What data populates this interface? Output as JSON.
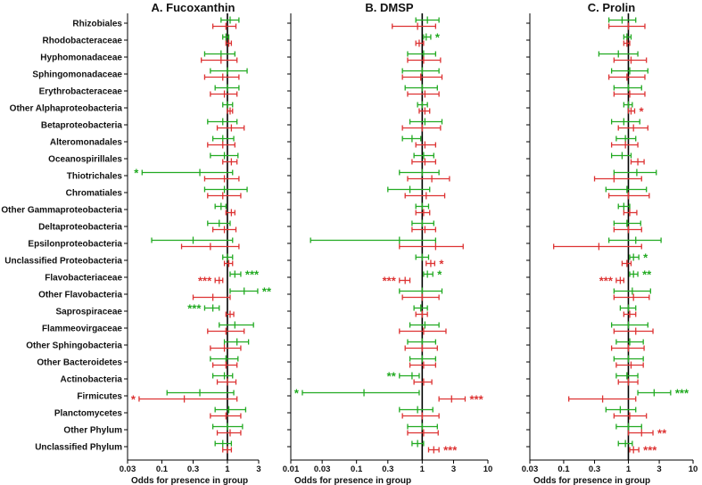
{
  "colors": {
    "group1": "#22aa22",
    "group2": "#dd3333",
    "axis": "#000000"
  },
  "chart_data": [
    {
      "type": "forest",
      "title": "A. Fucoxanthin",
      "xlabel": "Odds for presence in group",
      "xscale": "log",
      "xlim": [
        0.03,
        3
      ],
      "xticks": [
        "0.03",
        "0.1",
        "0.3",
        "1",
        "3"
      ],
      "categories": [
        "Rhizobiales",
        "Rhodobacteraceae",
        "Hyphomonadaceae",
        "Sphingomonadaceae",
        "Erythrobacteraceae",
        "Other Alphaproteobacteria",
        "Betaproteobacteria",
        "Alteromonadales",
        "Oceanospirillales",
        "Thiotrichales",
        "Chromatiales",
        "Other Gammaproteobacteria",
        "Deltaproteobacteria",
        "Epsilonproteobacteria",
        "Unclassified Proteobacteria",
        "Flavobacteriaceae",
        "Other Flavobacteria",
        "Saprospiraceae",
        "Flammeovirgaceae",
        "Other Sphingobacteria",
        "Other Bacteroidetes",
        "Actinobacteria",
        "Firmicutes",
        "Planctomycetes",
        "Other Phylum",
        "Unclassified Phylum"
      ],
      "series": [
        {
          "name": "green",
          "color": "green",
          "est": [
            1.1,
            0.95,
            0.8,
            1.0,
            1.0,
            1.0,
            0.85,
            0.85,
            0.9,
            0.38,
            0.9,
            0.8,
            0.75,
            0.3,
            1.0,
            1.3,
            1.8,
            0.6,
            1.3,
            1.4,
            0.95,
            0.9,
            0.38,
            1.05,
            1.0,
            0.85
          ],
          "lo": [
            0.8,
            0.85,
            0.45,
            0.55,
            0.65,
            0.85,
            0.5,
            0.6,
            0.55,
            0.05,
            0.45,
            0.65,
            0.5,
            0.07,
            0.85,
            1.1,
            1.1,
            0.45,
            0.75,
            0.9,
            0.55,
            0.6,
            0.12,
            0.65,
            0.6,
            0.65
          ],
          "hi": [
            1.5,
            1.05,
            1.3,
            2.0,
            1.5,
            1.2,
            1.4,
            1.25,
            1.45,
            1.2,
            2.0,
            0.95,
            1.1,
            1.2,
            1.2,
            1.6,
            2.9,
            0.75,
            2.5,
            2.1,
            1.45,
            1.2,
            1.25,
            1.9,
            1.7,
            1.15
          ],
          "stars": [
            "",
            "",
            "",
            "",
            "",
            "",
            "",
            "",
            "",
            "*",
            "",
            "",
            "",
            "",
            "",
            "***",
            "**",
            "***",
            "",
            "",
            "",
            "",
            "",
            "",
            "",
            ""
          ]
        },
        {
          "name": "red",
          "color": "red",
          "est": [
            0.95,
            1.05,
            0.8,
            0.85,
            0.9,
            1.1,
            1.15,
            0.85,
            1.15,
            0.9,
            0.85,
            1.15,
            0.9,
            0.55,
            1.05,
            0.75,
            0.6,
            1.1,
            0.95,
            0.9,
            0.95,
            1.0,
            0.22,
            0.95,
            1.1,
            1.0
          ],
          "lo": [
            0.6,
            0.95,
            0.4,
            0.45,
            0.55,
            1.0,
            0.7,
            0.5,
            0.85,
            0.45,
            0.5,
            0.95,
            0.6,
            0.2,
            0.9,
            0.65,
            0.3,
            0.95,
            0.5,
            0.55,
            0.6,
            0.7,
            0.045,
            0.55,
            0.7,
            0.85
          ],
          "hi": [
            1.35,
            1.15,
            1.4,
            1.5,
            1.4,
            1.2,
            1.8,
            1.3,
            1.4,
            1.5,
            1.6,
            1.3,
            1.35,
            1.5,
            1.2,
            0.85,
            1.1,
            1.25,
            1.8,
            1.6,
            1.4,
            1.35,
            1.4,
            1.6,
            1.6,
            1.15
          ],
          "stars": [
            "",
            "",
            "",
            "",
            "",
            "",
            "",
            "",
            "",
            "",
            "",
            "",
            "",
            "",
            "",
            "***",
            "",
            "",
            "",
            "",
            "",
            "",
            "*",
            "",
            "",
            ""
          ]
        }
      ]
    },
    {
      "type": "forest",
      "title": "B. DMSP",
      "xlabel": "Odds for presence in group",
      "xscale": "log",
      "xlim": [
        0.01,
        10
      ],
      "xticks": [
        "0.01",
        "0.03",
        "0.1",
        "0.3",
        "1",
        "3",
        "10"
      ],
      "categories": [
        "Rhizobiales",
        "Rhodobacteraceae",
        "Hyphomonadaceae",
        "Sphingomonadaceae",
        "Erythrobacteraceae",
        "Other Alphaproteobacteria",
        "Betaproteobacteria",
        "Alteromonadales",
        "Oceanospirillales",
        "Thiotrichales",
        "Chromatiales",
        "Other Gammaproteobacteria",
        "Deltaproteobacteria",
        "Epsilonproteobacteria",
        "Unclassified Proteobacteria",
        "Flavobacteriaceae",
        "Other Flavobacteria",
        "Saprospiraceae",
        "Flammeovirgaceae",
        "Other Sphingobacteria",
        "Other Bacteroidetes",
        "Actinobacteria",
        "Firmicutes",
        "Planctomycetes",
        "Other Phylum",
        "Unclassified Phylum"
      ],
      "series": [
        {
          "name": "green",
          "color": "green",
          "est": [
            1.2,
            1.15,
            1.05,
            1.0,
            1.0,
            1.0,
            1.1,
            0.7,
            1.05,
            1.0,
            0.65,
            1.0,
            1.0,
            0.45,
            1.0,
            1.2,
            1.0,
            0.95,
            1.1,
            1.0,
            1.0,
            0.7,
            0.13,
            0.85,
            1.0,
            0.85
          ],
          "lo": [
            0.8,
            1.05,
            0.6,
            0.5,
            0.55,
            0.85,
            0.65,
            0.5,
            0.75,
            0.45,
            0.3,
            0.8,
            0.7,
            0.02,
            0.8,
            1.05,
            0.45,
            0.75,
            0.65,
            0.6,
            0.65,
            0.45,
            0.015,
            0.45,
            0.6,
            0.7
          ],
          "hi": [
            1.8,
            1.35,
            1.6,
            1.8,
            1.7,
            1.2,
            2.0,
            0.95,
            1.5,
            1.8,
            1.3,
            1.25,
            1.5,
            1.6,
            1.25,
            1.45,
            2.0,
            1.2,
            1.8,
            1.6,
            1.6,
            0.9,
            0.9,
            1.45,
            1.7,
            1.05
          ],
          "stars": [
            "",
            "*",
            "",
            "",
            "",
            "",
            "",
            "",
            "",
            "",
            "",
            "",
            "",
            "",
            "",
            "*",
            "",
            "",
            "",
            "",
            "",
            "**",
            "*",
            "",
            "",
            ""
          ]
        },
        {
          "name": "red",
          "color": "red",
          "est": [
            0.85,
            0.9,
            1.05,
            0.95,
            1.1,
            1.1,
            1.0,
            1.1,
            1.1,
            1.4,
            1.15,
            1.05,
            1.1,
            1.6,
            1.35,
            0.55,
            1.0,
            1.0,
            1.05,
            1.0,
            1.05,
            1.05,
            2.8,
            1.0,
            1.05,
            1.5
          ],
          "lo": [
            0.35,
            0.8,
            0.6,
            0.5,
            0.6,
            0.9,
            0.5,
            0.8,
            0.7,
            0.6,
            0.55,
            0.8,
            0.7,
            0.45,
            1.15,
            0.45,
            0.5,
            0.8,
            0.45,
            0.55,
            0.65,
            0.75,
            1.8,
            0.5,
            0.6,
            1.25
          ],
          "hi": [
            1.6,
            1.05,
            1.9,
            2.0,
            1.8,
            1.3,
            1.9,
            1.6,
            1.6,
            2.6,
            2.2,
            1.3,
            1.6,
            4.2,
            1.55,
            0.65,
            1.8,
            1.2,
            2.3,
            1.7,
            1.6,
            1.4,
            4.5,
            1.8,
            1.75,
            1.8
          ],
          "stars": [
            "",
            "",
            "",
            "",
            "",
            "",
            "",
            "",
            "",
            "",
            "",
            "",
            "",
            "",
            "*",
            "***",
            "",
            "",
            "",
            "",
            "",
            "",
            "***",
            "",
            "",
            "***"
          ]
        }
      ]
    },
    {
      "type": "forest",
      "title": "C. Prolin",
      "xlabel": "Odds for presence in group",
      "xscale": "log",
      "xlim": [
        0.03,
        10
      ],
      "xticks": [
        "0.03",
        "0.1",
        "0.3",
        "1",
        "3",
        "10"
      ],
      "categories": [
        "Rhizobiales",
        "Rhodobacteraceae",
        "Hyphomonadaceae",
        "Sphingomonadaceae",
        "Erythrobacteraceae",
        "Other Alphaproteobacteria",
        "Betaproteobacteria",
        "Alteromonadales",
        "Oceanospirillales",
        "Thiotrichales",
        "Chromatiales",
        "Other Gammaproteobacteria",
        "Deltaproteobacteria",
        "Epsilonproteobacteria",
        "Unclassified Proteobacteria",
        "Flavobacteriaceae",
        "Other Flavobacteria",
        "Saprospiraceae",
        "Flammeovirgaceae",
        "Other Sphingobacteria",
        "Other Bacteroidetes",
        "Actinobacteria",
        "Firmicutes",
        "Planctomycetes",
        "Other Phylum",
        "Unclassified Phylum"
      ],
      "series": [
        {
          "name": "green",
          "color": "green",
          "est": [
            0.8,
            0.95,
            0.7,
            1.05,
            1.0,
            1.0,
            0.85,
            0.9,
            0.8,
            1.35,
            0.95,
            0.85,
            0.95,
            1.3,
            1.2,
            1.2,
            1.15,
            1.0,
            1.0,
            1.05,
            1.0,
            0.95,
            2.5,
            0.75,
            1.0,
            0.9
          ],
          "lo": [
            0.5,
            0.85,
            0.35,
            0.55,
            0.6,
            0.85,
            0.55,
            0.65,
            0.55,
            0.6,
            0.45,
            0.7,
            0.6,
            0.5,
            1.05,
            1.05,
            0.6,
            0.75,
            0.55,
            0.65,
            0.6,
            0.65,
            1.4,
            0.45,
            0.65,
            0.7
          ],
          "hi": [
            1.3,
            1.1,
            1.4,
            2.0,
            1.6,
            1.15,
            1.5,
            1.3,
            1.1,
            2.7,
            1.9,
            1.05,
            1.55,
            3.2,
            1.45,
            1.4,
            2.2,
            1.3,
            2.0,
            1.7,
            1.7,
            1.4,
            4.5,
            1.3,
            1.6,
            1.15
          ],
          "stars": [
            "",
            "",
            "",
            "",
            "",
            "",
            "",
            "",
            "",
            "",
            "",
            "",
            "",
            "",
            "*",
            "**",
            "",
            "",
            "",
            "",
            "",
            "",
            "***",
            "",
            "",
            ""
          ]
        },
        {
          "name": "red",
          "color": "red",
          "est": [
            1.0,
            0.95,
            1.1,
            0.95,
            1.05,
            1.1,
            1.2,
            0.9,
            1.4,
            0.6,
            1.0,
            1.05,
            1.0,
            0.35,
            0.95,
            0.75,
            1.2,
            1.05,
            1.3,
            1.0,
            1.1,
            1.0,
            0.4,
            1.05,
            1.6,
            1.2
          ],
          "lo": [
            0.5,
            0.85,
            0.6,
            0.5,
            0.6,
            1.0,
            0.7,
            0.55,
            1.1,
            0.3,
            0.5,
            0.85,
            0.6,
            0.07,
            0.8,
            0.65,
            0.6,
            0.85,
            0.6,
            0.55,
            0.65,
            0.7,
            0.12,
            0.6,
            1.0,
            1.05
          ],
          "hi": [
            1.8,
            1.05,
            1.9,
            1.8,
            1.8,
            1.25,
            2.0,
            1.4,
            1.75,
            1.6,
            2.1,
            1.35,
            1.6,
            1.6,
            1.1,
            0.85,
            2.1,
            1.3,
            2.4,
            1.75,
            1.7,
            1.4,
            1.3,
            1.9,
            2.4,
            1.45
          ],
          "stars": [
            "",
            "",
            "",
            "",
            "",
            "*",
            "",
            "",
            "",
            "",
            "",
            "",
            "",
            "",
            "",
            "***",
            "",
            "",
            "",
            "",
            "",
            "",
            "",
            "",
            "**",
            "***"
          ]
        }
      ]
    }
  ]
}
